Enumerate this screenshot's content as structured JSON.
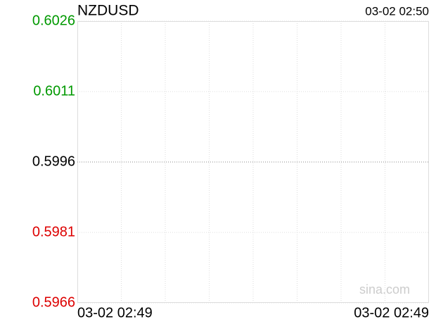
{
  "chart_data": {
    "type": "line",
    "title": "NZDUSD",
    "timestamp": "03-02 02:50",
    "ylim": [
      0.5966,
      0.6026
    ],
    "yticks": [
      0.5966,
      0.5981,
      0.5996,
      0.6011,
      0.6026
    ],
    "x_labels": [
      "03-02 02:49",
      "03-02 02:49"
    ],
    "colors": {
      "up": "#009900",
      "flat": "#000000",
      "down": "#dd0000"
    },
    "grid": true,
    "watermark": "sina.com"
  }
}
